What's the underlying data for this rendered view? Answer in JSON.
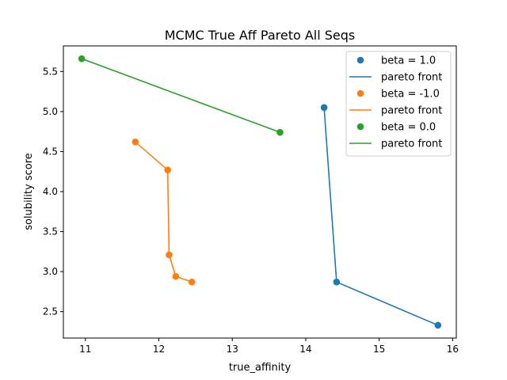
{
  "chart_data": {
    "type": "scatter",
    "title": "MCMC True Aff Pareto All Seqs",
    "xlabel": "true_affinity",
    "ylabel": "solubility score",
    "xlim": [
      10.7,
      16.05
    ],
    "ylim": [
      2.17,
      5.82
    ],
    "xticks": [
      11,
      12,
      13,
      14,
      15,
      16
    ],
    "yticks": [
      2.5,
      3.0,
      3.5,
      4.0,
      4.5,
      5.0,
      5.5
    ],
    "xtick_labels": [
      "11",
      "12",
      "13",
      "14",
      "15",
      "16"
    ],
    "ytick_labels": [
      "2.5",
      "3.0",
      "3.5",
      "4.0",
      "4.5",
      "5.0",
      "5.5"
    ],
    "grid": false,
    "legend_position": "top-right",
    "series": [
      {
        "name": "beta = 1.0",
        "line_name": "pareto front",
        "color": "#1f77b4",
        "points": [
          {
            "x": 14.25,
            "y": 5.05
          },
          {
            "x": 14.42,
            "y": 2.87
          },
          {
            "x": 15.8,
            "y": 2.33
          }
        ]
      },
      {
        "name": "beta = -1.0",
        "line_name": "pareto front",
        "color": "#ff7f0e",
        "points": [
          {
            "x": 11.68,
            "y": 4.62
          },
          {
            "x": 12.12,
            "y": 4.27
          },
          {
            "x": 12.14,
            "y": 3.21
          },
          {
            "x": 12.23,
            "y": 2.94
          },
          {
            "x": 12.45,
            "y": 2.87
          }
        ]
      },
      {
        "name": "beta = 0.0",
        "line_name": "pareto front",
        "color": "#2ca02c",
        "points": [
          {
            "x": 10.95,
            "y": 5.66
          },
          {
            "x": 13.65,
            "y": 4.74
          }
        ]
      }
    ]
  }
}
